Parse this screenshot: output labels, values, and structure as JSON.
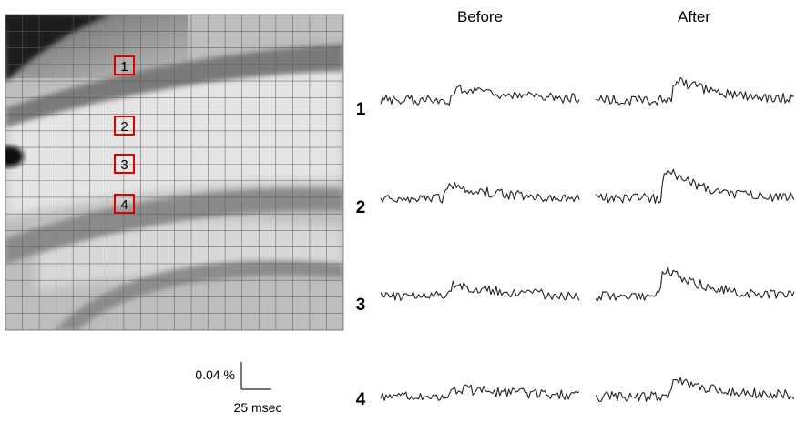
{
  "figure": {
    "column_titles": [
      "Before",
      "After"
    ],
    "roi_markers": [
      "1",
      "2",
      "3",
      "4"
    ],
    "row_labels": [
      "1",
      "2",
      "3",
      "4"
    ],
    "scale_bar": {
      "amplitude_label": "0.04 %",
      "time_label": "25 msec"
    },
    "colors": {
      "roi_box": "#e00000",
      "trace": "#222222",
      "grid": "#5a5a5a"
    }
  }
}
